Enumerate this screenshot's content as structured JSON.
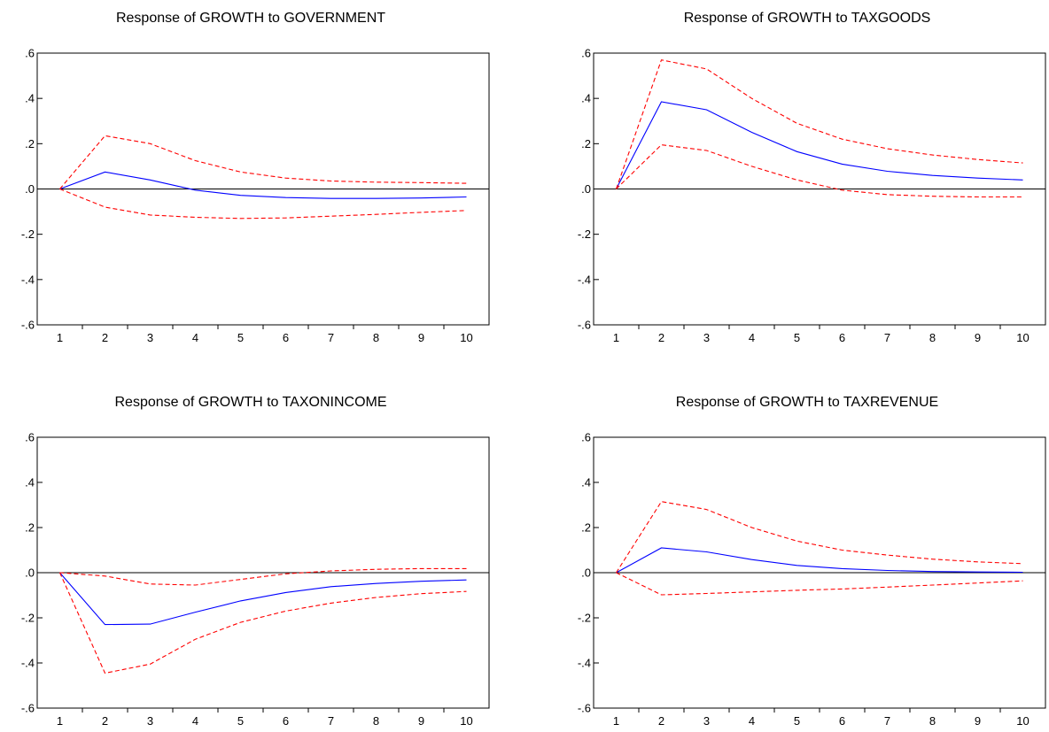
{
  "colors": {
    "response": "#0000ff",
    "bands": "#ff0000",
    "axis": "#000000"
  },
  "chart_data": [
    {
      "type": "line",
      "title": "Response of GROWTH to GOVERNMENT",
      "x": [
        1,
        2,
        3,
        4,
        5,
        6,
        7,
        8,
        9,
        10
      ],
      "ylim": [
        -0.6,
        0.6
      ],
      "yticks": [
        ".6",
        ".4",
        ".2",
        ".0",
        "-.2",
        "-.4",
        "-.6"
      ],
      "series": [
        {
          "role": "response",
          "values": [
            0.0,
            0.075,
            0.04,
            -0.005,
            -0.028,
            -0.038,
            -0.042,
            -0.042,
            -0.04,
            -0.035
          ]
        },
        {
          "role": "upper",
          "values": [
            0.0,
            0.235,
            0.2,
            0.125,
            0.075,
            0.048,
            0.035,
            0.03,
            0.028,
            0.025
          ]
        },
        {
          "role": "lower",
          "values": [
            0.0,
            -0.08,
            -0.115,
            -0.125,
            -0.13,
            -0.128,
            -0.12,
            -0.112,
            -0.103,
            -0.095
          ]
        }
      ]
    },
    {
      "type": "line",
      "title": "Response of GROWTH to TAXGOODS",
      "x": [
        1,
        2,
        3,
        4,
        5,
        6,
        7,
        8,
        9,
        10
      ],
      "ylim": [
        -0.6,
        0.6
      ],
      "yticks": [
        ".6",
        ".4",
        ".2",
        ".0",
        "-.2",
        "-.4",
        "-.6"
      ],
      "series": [
        {
          "role": "response",
          "values": [
            0.0,
            0.385,
            0.35,
            0.25,
            0.165,
            0.11,
            0.078,
            0.06,
            0.048,
            0.04
          ]
        },
        {
          "role": "upper",
          "values": [
            0.0,
            0.57,
            0.53,
            0.4,
            0.29,
            0.22,
            0.178,
            0.15,
            0.13,
            0.115
          ]
        },
        {
          "role": "lower",
          "values": [
            0.0,
            0.195,
            0.17,
            0.1,
            0.04,
            -0.005,
            -0.025,
            -0.032,
            -0.035,
            -0.035
          ]
        }
      ]
    },
    {
      "type": "line",
      "title": "Response of GROWTH to TAXONINCOME",
      "x": [
        1,
        2,
        3,
        4,
        5,
        6,
        7,
        8,
        9,
        10
      ],
      "ylim": [
        -0.6,
        0.6
      ],
      "yticks": [
        ".6",
        ".4",
        ".2",
        ".0",
        "-.2",
        "-.4",
        "-.6"
      ],
      "series": [
        {
          "role": "response",
          "values": [
            0.0,
            -0.23,
            -0.228,
            -0.175,
            -0.125,
            -0.088,
            -0.062,
            -0.048,
            -0.038,
            -0.032
          ]
        },
        {
          "role": "upper",
          "values": [
            0.0,
            -0.015,
            -0.05,
            -0.055,
            -0.03,
            -0.005,
            0.008,
            0.015,
            0.018,
            0.018
          ]
        },
        {
          "role": "lower",
          "values": [
            0.0,
            -0.445,
            -0.405,
            -0.295,
            -0.22,
            -0.17,
            -0.135,
            -0.11,
            -0.093,
            -0.083
          ]
        }
      ]
    },
    {
      "type": "line",
      "title": "Response of GROWTH to TAXREVENUE",
      "x": [
        1,
        2,
        3,
        4,
        5,
        6,
        7,
        8,
        9,
        10
      ],
      "ylim": [
        -0.6,
        0.6
      ],
      "yticks": [
        ".6",
        ".4",
        ".2",
        ".0",
        "-.2",
        "-.4",
        "-.6"
      ],
      "series": [
        {
          "role": "response",
          "values": [
            0.0,
            0.11,
            0.092,
            0.058,
            0.032,
            0.018,
            0.01,
            0.005,
            0.003,
            0.002
          ]
        },
        {
          "role": "upper",
          "values": [
            0.0,
            0.315,
            0.28,
            0.2,
            0.14,
            0.1,
            0.078,
            0.06,
            0.048,
            0.04
          ]
        },
        {
          "role": "lower",
          "values": [
            0.0,
            -0.098,
            -0.092,
            -0.085,
            -0.078,
            -0.072,
            -0.064,
            -0.055,
            -0.046,
            -0.036
          ]
        }
      ]
    }
  ]
}
